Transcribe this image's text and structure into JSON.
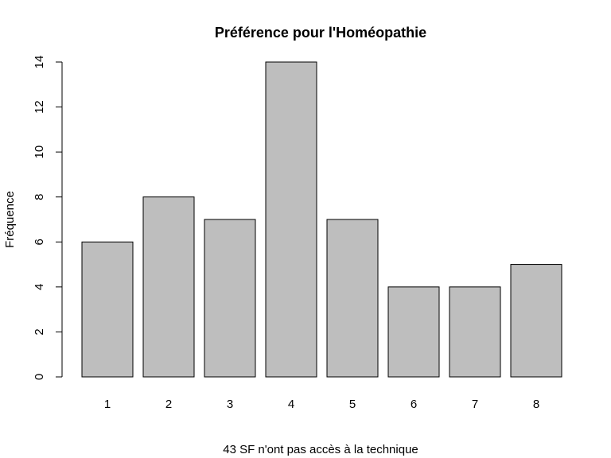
{
  "chart_data": {
    "type": "bar",
    "title": "Préférence pour l'Homéopathie",
    "xlabel": "43 SF n'ont pas accès à la technique",
    "ylabel": "Fréquence",
    "categories": [
      "1",
      "2",
      "3",
      "4",
      "5",
      "6",
      "7",
      "8"
    ],
    "values": [
      6,
      8,
      7,
      14,
      7,
      4,
      4,
      5
    ],
    "ylim": [
      0,
      14
    ],
    "yticks": [
      "0",
      "2",
      "4",
      "6",
      "8",
      "10",
      "12",
      "14"
    ],
    "bar_color": "#bebebe",
    "grid": false,
    "legend": "none"
  }
}
